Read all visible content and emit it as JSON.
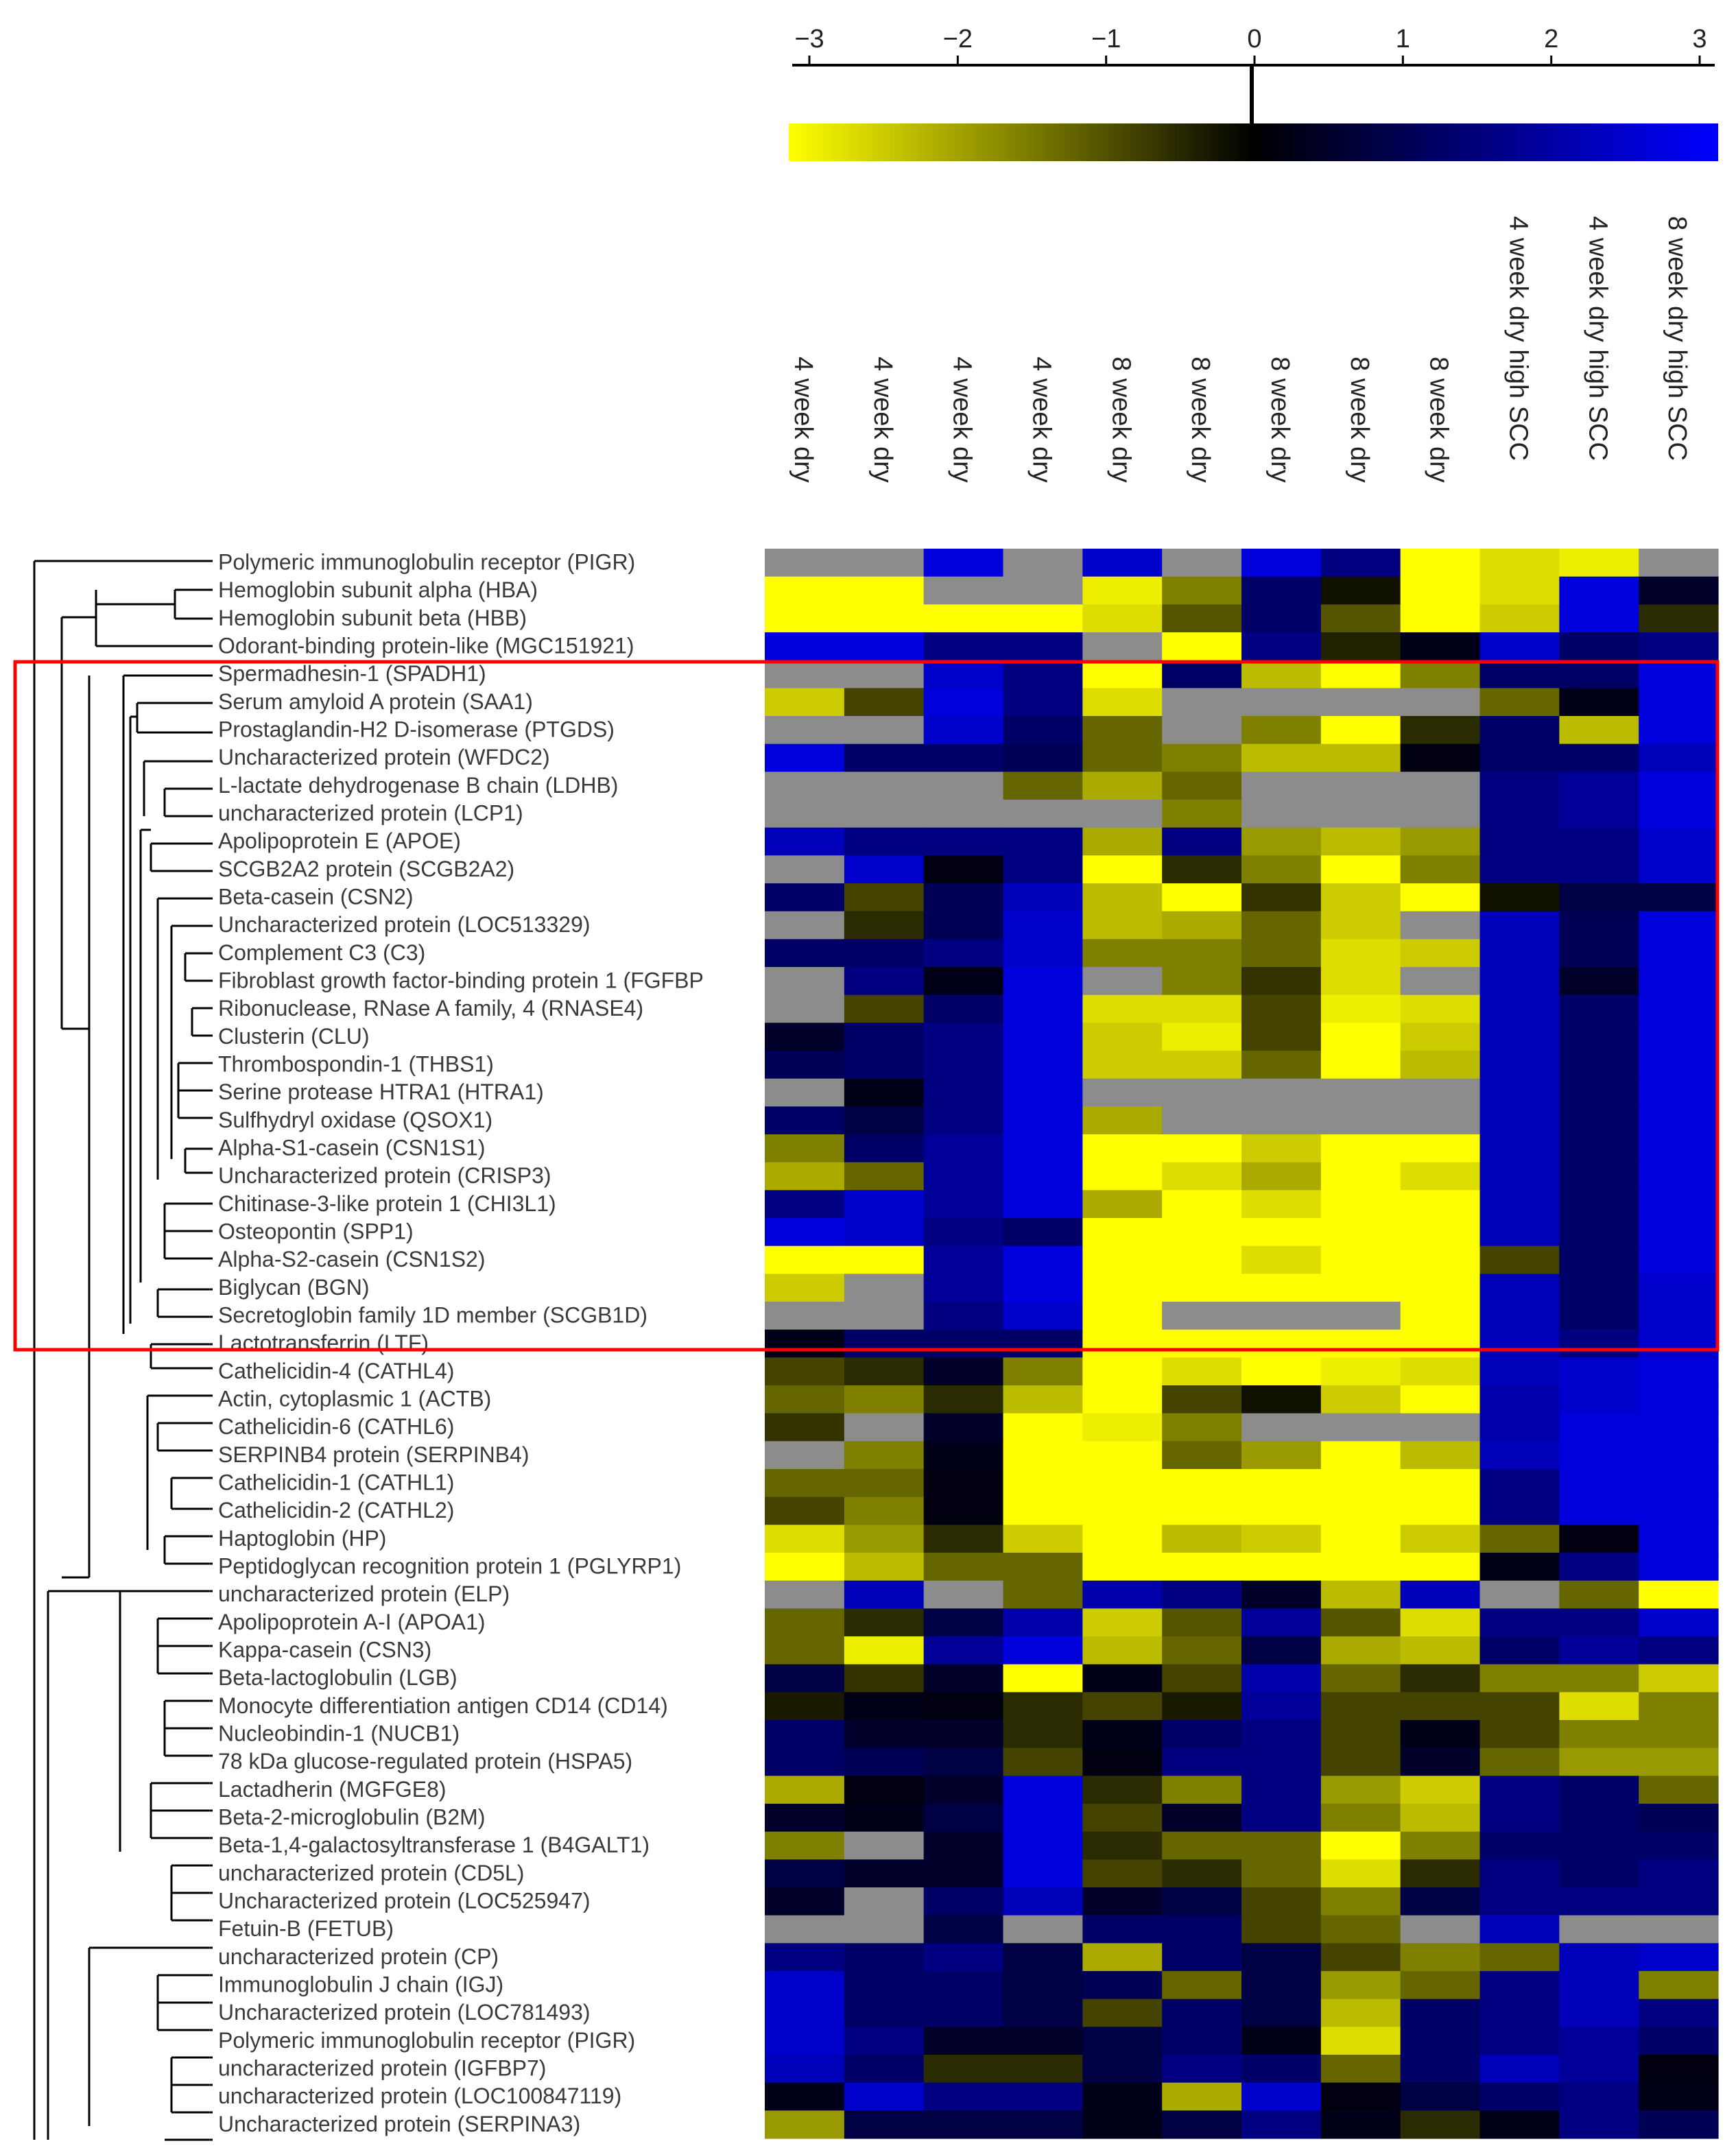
{
  "chart_data": {
    "type": "heatmap",
    "colorbar": {
      "range": [
        -3,
        3
      ],
      "ticks": [
        -3,
        -2,
        -1,
        0,
        1,
        2,
        3
      ],
      "tick_labels": [
        "−3",
        "−2",
        "−1",
        "0",
        "1",
        "2",
        "3"
      ],
      "colors": {
        "low": "#ffff00",
        "mid": "#000000",
        "high": "#0000ff"
      }
    },
    "missing_color": "#8c8c8c",
    "columns": [
      "4 week dry",
      "4 week dry",
      "4 week dry",
      "4 week dry",
      "8 week dry",
      "8 week dry",
      "8 week dry",
      "8 week dry",
      "8 week dry",
      "4 week dry high SCC",
      "4 week dry high SCC",
      "8 week dry high SCC"
    ],
    "rows": [
      "Polymeric immunoglobulin receptor (PIGR)",
      "Hemoglobin subunit alpha (HBA)",
      "Hemoglobin subunit beta (HBB)",
      "Odorant-binding protein-like (MGC151921)",
      "Spermadhesin-1 (SPADH1)",
      "Serum amyloid A protein (SAA1)",
      "Prostaglandin-H2 D-isomerase (PTGDS)",
      "Uncharacterized protein (WFDC2)",
      "L-lactate dehydrogenase B chain (LDHB)",
      "uncharacterized protein (LCP1)",
      "Apolipoprotein E (APOE)",
      "SCGB2A2 protein (SCGB2A2)",
      "Beta-casein (CSN2)",
      "Uncharacterized protein (LOC513329)",
      "Complement C3 (C3)",
      "Fibroblast growth factor-binding protein 1 (FGFBP",
      "Ribonuclease, RNase A family, 4 (RNASE4)",
      "Clusterin (CLU)",
      "Thrombospondin-1 (THBS1)",
      "Serine protease HTRA1 (HTRA1)",
      "Sulfhydryl oxidase (QSOX1)",
      "Alpha-S1-casein (CSN1S1)",
      "Uncharacterized protein (CRISP3)",
      "Chitinase-3-like protein 1 (CHI3L1)",
      "Osteopontin (SPP1)",
      "Alpha-S2-casein (CSN1S2)",
      "Biglycan (BGN)",
      "Secretoglobin family 1D member (SCGB1D)",
      "Lactotransferrin (LTF)",
      "Cathelicidin-4 (CATHL4)",
      "Actin, cytoplasmic 1 (ACTB)",
      "Cathelicidin-6 (CATHL6)",
      "SERPINB4 protein (SERPINB4)",
      "Cathelicidin-1 (CATHL1)",
      "Cathelicidin-2 (CATHL2)",
      "Haptoglobin (HP)",
      "Peptidoglycan recognition protein 1 (PGLYRP1)",
      "uncharacterized protein (ELP)",
      "Apolipoprotein A-I (APOA1)",
      "Kappa-casein (CSN3)",
      "Beta-lactoglobulin (LGB)",
      "Monocyte differentiation antigen CD14 (CD14)",
      "Nucleobindin-1 (NUCB1)",
      "78 kDa glucose-regulated protein (HSPA5)",
      "Lactadherin (MGFGE8)",
      "Beta-2-microglobulin (B2M)",
      "Beta-1,4-galactosyltransferase 1 (B4GALT1)",
      "uncharacterized protein (CD5L)",
      "Uncharacterized protein (LOC525947)",
      "Fetuin-B (FETUB)",
      "uncharacterized protein (CP)",
      "Immunoglobulin J chain (IGJ)",
      "Uncharacterized protein (LOC781493)",
      "Polymeric immunoglobulin receptor (PIGR)",
      "uncharacterized protein (IGFBP7)",
      "uncharacterized protein (LOC100847119)",
      "Uncharacterized protein (SERPINA3)"
    ],
    "values": [
      [
        null,
        null,
        2.6,
        null,
        2.4,
        null,
        2.6,
        1.5,
        -3,
        -2.6,
        -2.8,
        null
      ],
      [
        -3,
        -3,
        null,
        null,
        -2.8,
        -1.5,
        1.2,
        -0.2,
        -3,
        -2.6,
        2.6,
        0.5
      ],
      [
        -3,
        -3,
        -3,
        -3,
        -2.6,
        -1,
        1.2,
        -1,
        -3,
        -2.4,
        2.6,
        -0.5
      ],
      [
        2.6,
        2.6,
        1.5,
        1.5,
        null,
        -3,
        1.5,
        -0.4,
        0.3,
        2.4,
        1.2,
        1.5
      ],
      [
        null,
        null,
        2.4,
        1.5,
        -3,
        1.2,
        -2.2,
        -3,
        -1.5,
        1.2,
        1.2,
        2.6
      ],
      [
        -2.4,
        -0.8,
        2.6,
        1.5,
        -2.6,
        null,
        null,
        null,
        null,
        -1.2,
        0.3,
        2.6
      ],
      [
        null,
        null,
        2.4,
        1.2,
        -1.2,
        null,
        -1.5,
        -3,
        -0.5,
        1.2,
        -2.2,
        2.6
      ],
      [
        2.6,
        1.2,
        1.2,
        1.0,
        -1.2,
        -1.5,
        -2.2,
        -2.2,
        0.2,
        1.2,
        1.2,
        2.2
      ],
      [
        null,
        null,
        null,
        -1.2,
        -2,
        -1.2,
        null,
        null,
        null,
        1.5,
        1.8,
        2.6
      ],
      [
        null,
        null,
        null,
        null,
        null,
        -1.5,
        null,
        null,
        null,
        1.5,
        1.8,
        2.6
      ],
      [
        2.2,
        1.5,
        1.5,
        1.5,
        -2,
        1.5,
        -1.8,
        -2.2,
        -1.8,
        1.5,
        1.5,
        2.4
      ],
      [
        null,
        2.4,
        0.2,
        1.5,
        -3,
        -0.5,
        -1.5,
        -3,
        -1.5,
        1.5,
        1.5,
        2.4
      ],
      [
        1.2,
        -0.8,
        1.0,
        2.2,
        -2.2,
        -3,
        -0.6,
        -2.4,
        -3,
        -0.2,
        0.8,
        0.8
      ],
      [
        null,
        -0.5,
        1.0,
        2.4,
        -2.2,
        -2,
        -1.2,
        -2.4,
        null,
        2.2,
        1.0,
        2.6
      ],
      [
        1.2,
        1.2,
        1.5,
        2.4,
        -1.5,
        -1.5,
        -1.2,
        -2.6,
        -2.4,
        2.2,
        1.0,
        2.6
      ],
      [
        null,
        1.5,
        0.3,
        2.6,
        null,
        -1.5,
        -0.6,
        -2.6,
        null,
        2.2,
        0.5,
        2.6
      ],
      [
        null,
        -0.8,
        1.2,
        2.6,
        -2.6,
        -2.6,
        -0.8,
        -2.8,
        -2.6,
        2.2,
        1.2,
        2.6
      ],
      [
        0.5,
        1.2,
        1.5,
        2.6,
        -2.4,
        -2.8,
        -0.8,
        -3,
        -2.4,
        2.2,
        1.2,
        2.6
      ],
      [
        1.0,
        1.2,
        1.5,
        2.6,
        -2.4,
        -2.4,
        -1.2,
        -3,
        -2.2,
        2.2,
        1.2,
        2.6
      ],
      [
        null,
        0.3,
        1.5,
        2.6,
        null,
        null,
        null,
        null,
        null,
        2.2,
        1.2,
        2.6
      ],
      [
        1.2,
        0.8,
        1.5,
        2.6,
        -2,
        null,
        null,
        null,
        null,
        2.2,
        1.2,
        2.6
      ],
      [
        -1.5,
        1.2,
        1.8,
        2.6,
        -3,
        -3,
        -2.4,
        -3,
        -3,
        2.2,
        1.2,
        2.6
      ],
      [
        -2,
        -1.2,
        1.8,
        2.6,
        -3,
        -2.6,
        -2,
        -3,
        -2.6,
        2.2,
        1.2,
        2.6
      ],
      [
        1.5,
        2.4,
        1.8,
        2.6,
        -2,
        -3,
        -2.6,
        -3,
        -3,
        2.2,
        1.2,
        2.6
      ],
      [
        2.6,
        2.4,
        1.5,
        1.2,
        -3,
        -3,
        -3,
        -3,
        -3,
        2.2,
        1.2,
        2.6
      ],
      [
        -3,
        -3,
        1.8,
        2.6,
        -3,
        -3,
        -2.6,
        -3,
        -3,
        -0.8,
        1.2,
        2.6
      ],
      [
        -2.4,
        null,
        1.8,
        2.6,
        -3,
        -3,
        -3,
        -3,
        -3,
        2.2,
        1.2,
        2.4
      ],
      [
        null,
        null,
        1.5,
        2.4,
        -3,
        null,
        null,
        null,
        -3,
        2.2,
        1.2,
        2.4
      ],
      [
        0.3,
        1.2,
        1.2,
        1.2,
        -3,
        -3,
        -3,
        -3,
        -3,
        2.2,
        1.5,
        2.4
      ],
      [
        -0.8,
        -0.5,
        0.5,
        -1.5,
        -3,
        -2.6,
        -3,
        -2.8,
        -2.6,
        2.2,
        2.4,
        2.6
      ],
      [
        -1.2,
        -1.5,
        -0.5,
        -2.2,
        -3,
        -0.8,
        -0.2,
        -2.4,
        -3,
        2.0,
        2.4,
        2.6
      ],
      [
        -0.6,
        null,
        0.5,
        -3,
        -2.8,
        -1.5,
        null,
        null,
        null,
        2.0,
        2.6,
        2.6
      ],
      [
        null,
        -1.5,
        0.3,
        -3,
        -3,
        -1.2,
        -1.8,
        -3,
        -2.2,
        2.2,
        2.6,
        2.6
      ],
      [
        -1.2,
        -1.2,
        0.2,
        -3,
        -3,
        -3,
        -3,
        -3,
        -3,
        1.5,
        2.6,
        2.6
      ],
      [
        -0.8,
        -1.5,
        0.2,
        -3,
        -3,
        -3,
        -3,
        -3,
        -3,
        1.5,
        2.6,
        2.6
      ],
      [
        -2.6,
        -1.8,
        -0.5,
        -2.4,
        -3,
        -2.2,
        -2.4,
        -3,
        -2.4,
        -1.2,
        0.2,
        2.6
      ],
      [
        -3,
        -2.2,
        -1.2,
        -1.2,
        -3,
        -3,
        -3,
        -3,
        -3,
        0.3,
        1.5,
        2.6
      ],
      [
        null,
        2.2,
        null,
        -1.2,
        2.0,
        1.5,
        0.5,
        -2.2,
        2.2,
        null,
        -1.2,
        -3
      ],
      [
        -1.2,
        -0.5,
        0.8,
        2.0,
        -2.4,
        -1,
        1.8,
        -1,
        -2.6,
        1.5,
        1.5,
        2.4
      ],
      [
        -1.2,
        -2.8,
        1.8,
        2.6,
        -2.2,
        -1.2,
        0.8,
        -2,
        -2.2,
        1.2,
        1.8,
        1.5
      ],
      [
        0.8,
        -0.6,
        0.5,
        -3,
        0.3,
        -0.8,
        2.0,
        -1.2,
        -0.5,
        -1.5,
        -1.5,
        -2.4
      ],
      [
        -0.3,
        0.3,
        0.2,
        -0.5,
        -0.8,
        -0.3,
        1.8,
        -0.8,
        -0.8,
        -0.8,
        -2.6,
        -1.5
      ],
      [
        1.2,
        0.5,
        0.5,
        -0.5,
        0.3,
        1.2,
        1.5,
        -0.8,
        0.3,
        -0.8,
        -1.5,
        -1.5
      ],
      [
        1.2,
        1.0,
        0.8,
        -0.8,
        0.2,
        1.5,
        1.5,
        -0.8,
        0.5,
        -1.2,
        -1.8,
        -1.8
      ],
      [
        -2,
        0.2,
        0.5,
        2.6,
        -0.5,
        -1.5,
        1.5,
        -1.8,
        -2.4,
        1.5,
        1.2,
        -1.2
      ],
      [
        0.5,
        0.3,
        0.8,
        2.6,
        -0.8,
        0.5,
        1.5,
        -1.5,
        -2.2,
        1.5,
        1.2,
        1.0
      ],
      [
        -1.5,
        null,
        0.5,
        2.6,
        -0.5,
        -1.2,
        -1.2,
        -3,
        -1.5,
        1.2,
        1.2,
        1.2
      ],
      [
        0.8,
        0.5,
        0.5,
        2.6,
        -0.8,
        -0.5,
        -1.2,
        -2.6,
        -0.5,
        1.5,
        1.2,
        1.5
      ],
      [
        0.5,
        null,
        1.2,
        2.2,
        0.5,
        0.8,
        -0.8,
        -1.5,
        0.8,
        1.5,
        1.5,
        1.5
      ],
      [
        null,
        null,
        0.8,
        null,
        1.2,
        1.2,
        -0.8,
        -1.2,
        null,
        2.2,
        null,
        null
      ],
      [
        1.5,
        1.2,
        1.5,
        0.8,
        -2.0,
        1.2,
        0.8,
        -0.8,
        -1.5,
        -1.2,
        2.2,
        2.4
      ],
      [
        2.4,
        1.2,
        1.2,
        0.8,
        1.0,
        -1.2,
        0.8,
        -1.8,
        -1.2,
        1.5,
        2.2,
        -1.5
      ],
      [
        2.4,
        1.2,
        1.2,
        0.8,
        -0.8,
        1.2,
        0.8,
        -2.2,
        1.2,
        1.5,
        2.2,
        1.5
      ],
      [
        2.4,
        1.5,
        0.5,
        0.5,
        0.8,
        1.2,
        0.3,
        -2.6,
        1.2,
        1.5,
        1.8,
        1.2
      ],
      [
        2.2,
        1.2,
        -0.5,
        -0.5,
        0.8,
        1.5,
        1.2,
        -1.2,
        1.2,
        2.2,
        1.8,
        0.2
      ],
      [
        0.3,
        2.4,
        1.5,
        1.5,
        0.3,
        -2.0,
        2.4,
        0.2,
        0.8,
        1.2,
        1.5,
        0.3
      ],
      [
        -1.8,
        0.8,
        0.8,
        0.8,
        0.3,
        0.8,
        1.5,
        0.3,
        -0.5,
        0.3,
        1.5,
        1.0
      ]
    ],
    "row_order_note": ""
  },
  "legend": {}
}
